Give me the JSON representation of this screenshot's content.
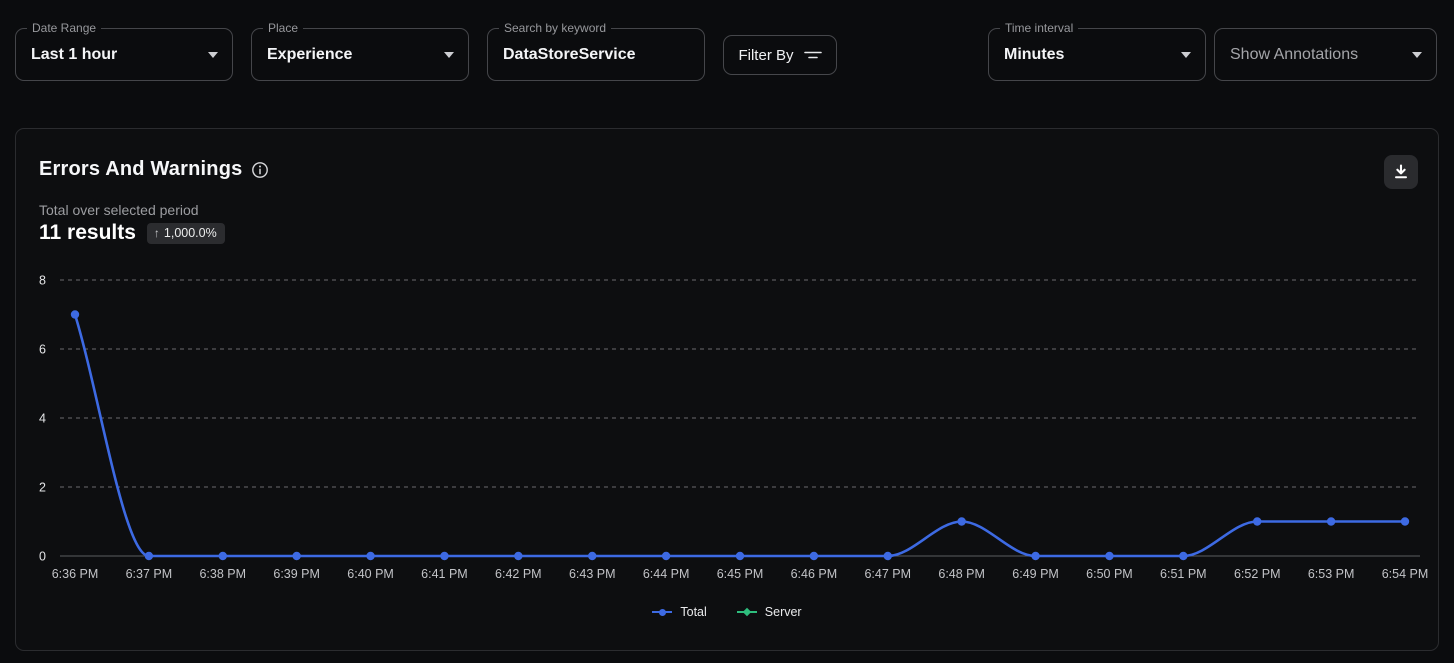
{
  "filters": {
    "date_range": {
      "label": "Date Range",
      "value": "Last 1 hour"
    },
    "place": {
      "label": "Place",
      "value": "Experience"
    },
    "search": {
      "label": "Search by keyword",
      "value": "DataStoreService"
    },
    "filter_by": {
      "label": "Filter By"
    },
    "time_interval": {
      "label": "Time interval",
      "value": "Minutes"
    },
    "annotations": {
      "value": "Show Annotations"
    }
  },
  "panel": {
    "title": "Errors And Warnings",
    "subtitle": "Total over selected period",
    "results": "11 results",
    "change_badge": {
      "arrow": "↑",
      "value": "1,000.0%"
    }
  },
  "icons": {
    "caret": "chevron-down",
    "filter": "filter-lines",
    "info": "info-circle",
    "download": "download-tray",
    "badge_arrow": "arrow-up"
  },
  "colors": {
    "accent_blue": "#3D6AE3",
    "accent_green": "#2EBD7D",
    "grid": "#6a6b6e",
    "zero_line": "#5c5d61",
    "tick_text": "#c2c3c7",
    "ytick_text": "#e4e5e7"
  },
  "chart_data": {
    "type": "line",
    "x": [
      "6:36 PM",
      "6:37 PM",
      "6:38 PM",
      "6:39 PM",
      "6:40 PM",
      "6:41 PM",
      "6:42 PM",
      "6:43 PM",
      "6:44 PM",
      "6:45 PM",
      "6:46 PM",
      "6:47 PM",
      "6:48 PM",
      "6:49 PM",
      "6:50 PM",
      "6:51 PM",
      "6:52 PM",
      "6:53 PM",
      "6:54 PM"
    ],
    "series": [
      {
        "name": "Total",
        "color": "#3D6AE3",
        "marker": "circle",
        "values": [
          7,
          0,
          0,
          0,
          0,
          0,
          0,
          0,
          0,
          0,
          0,
          0,
          1,
          0,
          0,
          0,
          1,
          1,
          1
        ],
        "visible": true
      },
      {
        "name": "Server",
        "color": "#2EBD7D",
        "marker": "diamond",
        "values": [],
        "visible": false
      }
    ],
    "title": "Errors And Warnings",
    "xlabel": "",
    "ylabel": "",
    "ylim": [
      0,
      8
    ],
    "yticks": [
      0,
      2,
      4,
      6,
      8
    ],
    "grid": "horizontal-dashed",
    "legend_position": "bottom-center"
  }
}
